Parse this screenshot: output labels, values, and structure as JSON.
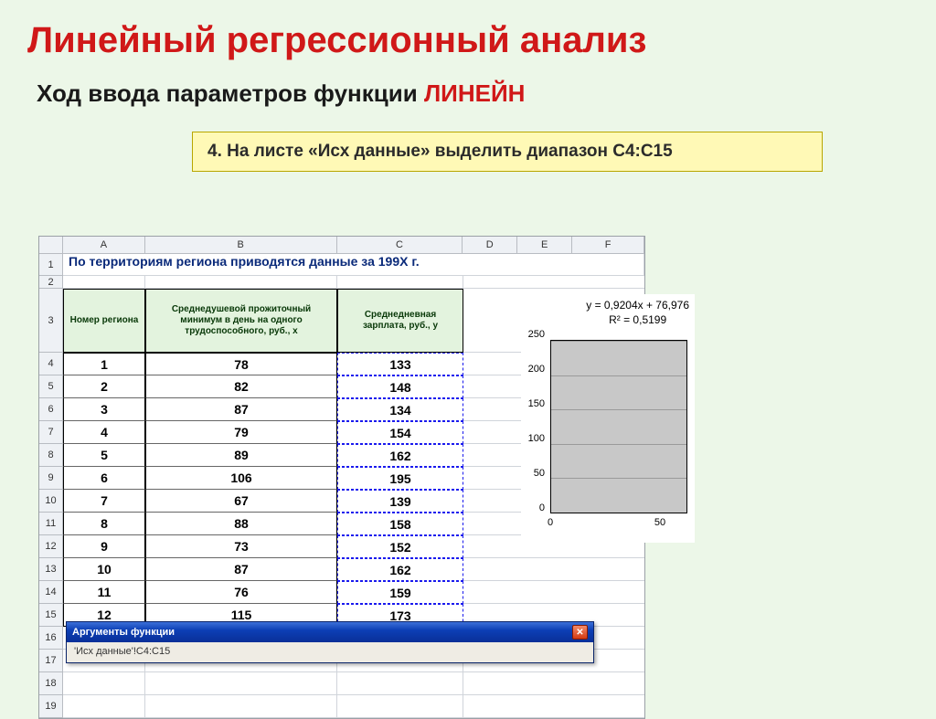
{
  "slide": {
    "title": "Линейный регрессионный анализ",
    "subtitle_pre": "Ход ввода параметров функции ",
    "subtitle_fn": "ЛИНЕЙН",
    "step_text": "4. На листе «Исх данные» выделить диапазон C4:C15"
  },
  "sheet": {
    "col_letters": [
      "A",
      "B",
      "C",
      "D",
      "E",
      "F"
    ],
    "title_row_text": "По территориям региона приводятся данные за 199X г.",
    "headers": {
      "a": "Номер региона",
      "b": "Среднедушевой прожиточный минимум в день на одного трудоспособного, руб., x",
      "c": "Среднедневная зарплата, руб., y"
    },
    "rows": [
      {
        "n": "4",
        "a": "1",
        "b": "78",
        "c": "133"
      },
      {
        "n": "5",
        "a": "2",
        "b": "82",
        "c": "148"
      },
      {
        "n": "6",
        "a": "3",
        "b": "87",
        "c": "134"
      },
      {
        "n": "7",
        "a": "4",
        "b": "79",
        "c": "154"
      },
      {
        "n": "8",
        "a": "5",
        "b": "89",
        "c": "162"
      },
      {
        "n": "9",
        "a": "6",
        "b": "106",
        "c": "195"
      },
      {
        "n": "10",
        "a": "7",
        "b": "67",
        "c": "139"
      },
      {
        "n": "11",
        "a": "8",
        "b": "88",
        "c": "158"
      },
      {
        "n": "12",
        "a": "9",
        "b": "73",
        "c": "152"
      },
      {
        "n": "13",
        "a": "10",
        "b": "87",
        "c": "162"
      },
      {
        "n": "14",
        "a": "11",
        "b": "76",
        "c": "159"
      },
      {
        "n": "15",
        "a": "12",
        "b": "115",
        "c": "173"
      }
    ],
    "empty_rows": [
      "16",
      "17",
      "18",
      "19"
    ]
  },
  "chart": {
    "equation": "y = 0,9204x + 76,976",
    "r2": "R² = 0,5199",
    "ylim": [
      0,
      250
    ],
    "yticks": [
      "0",
      "50",
      "100",
      "150",
      "200",
      "250"
    ],
    "xticks": [
      "0",
      "50"
    ],
    "plot_bg": "#c8c8c8",
    "grid_color": "#9a9a9a"
  },
  "dialog": {
    "title": "Аргументы функции",
    "body_text": "'Исх данные'!C4:C15",
    "close_glyph": "✕"
  }
}
